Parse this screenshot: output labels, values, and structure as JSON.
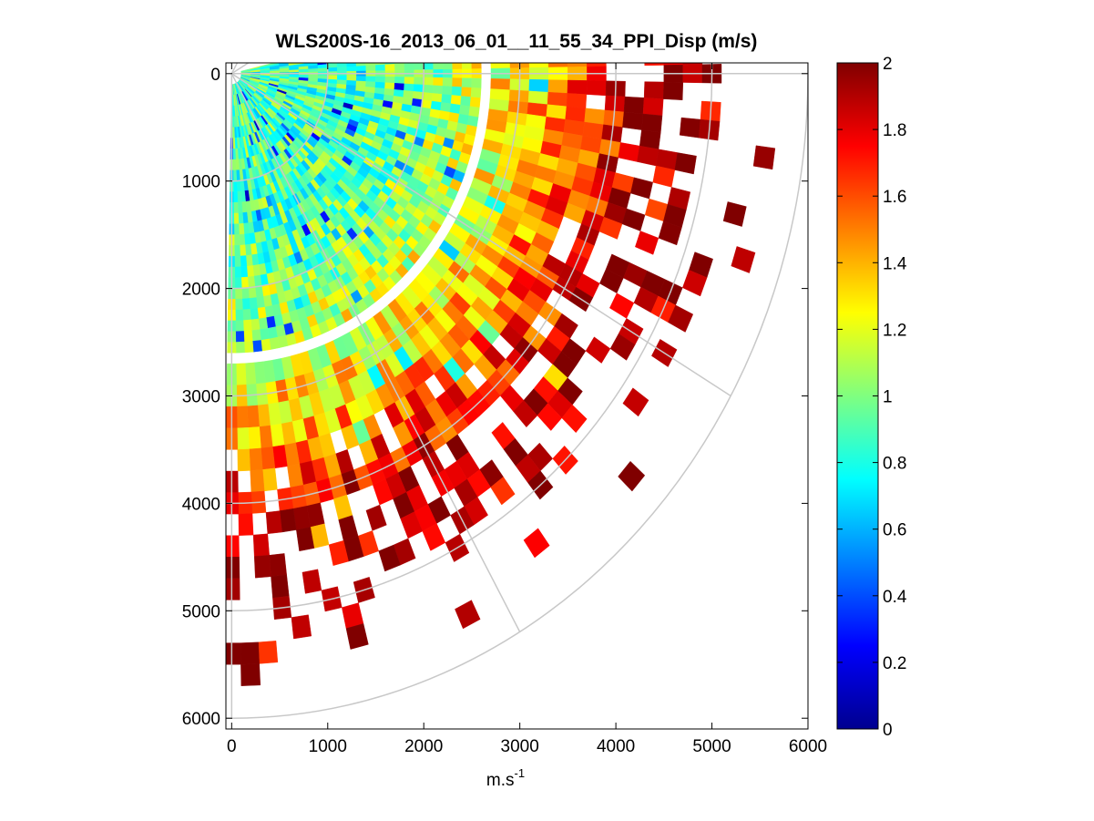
{
  "chart_data": {
    "type": "heatmap",
    "subtype": "polar-ppi",
    "title": "WLS200S-16_2013_06_01__11_55_34_PPI_Disp (m/s)",
    "xlabel": "m.s",
    "xlabel_superscript": "-1",
    "ylabel": "",
    "xlim": [
      -60,
      6000
    ],
    "ylim": [
      -100,
      6100
    ],
    "y_reversed": true,
    "xticks": [
      0,
      1000,
      2000,
      3000,
      4000,
      5000,
      6000
    ],
    "xtick_labels": [
      "0",
      "1000",
      "2000",
      "3000",
      "4000",
      "5000",
      "6000"
    ],
    "yticks": [
      0,
      1000,
      2000,
      3000,
      4000,
      5000,
      6000
    ],
    "ytick_labels": [
      "0",
      "1000",
      "2000",
      "3000",
      "4000",
      "5000",
      "6000"
    ],
    "colormap": "jet",
    "clim": [
      0,
      2
    ],
    "colorbar_ticks": [
      0,
      0.2,
      0.4,
      0.6,
      0.8,
      1,
      1.2,
      1.4,
      1.6,
      1.8,
      2
    ],
    "colorbar_tick_labels": [
      "0",
      "0.2",
      "0.4",
      "0.6",
      "0.8",
      "1",
      "1.2",
      "1.4",
      "1.6",
      "1.8",
      "2"
    ],
    "polar_grid": {
      "origin": [
        0,
        0
      ],
      "ring_radii": [
        1000,
        2000,
        3000,
        4000,
        5000,
        6000
      ],
      "spoke_angles_deg": [
        -60,
        -30,
        0,
        30,
        60,
        90
      ],
      "grid_color": "#c8c8c8"
    },
    "scan": {
      "azimuth_start_deg": -13,
      "azimuth_end_deg": 91,
      "range_start": 100,
      "range_end": 6000,
      "range_gate": 100,
      "azimuth_step_deg": 2,
      "value_model": "about 0.9 m/s near origin, rising to about 2 m/s at range 4000-6000; data sparse beyond ~4500 m"
    }
  }
}
